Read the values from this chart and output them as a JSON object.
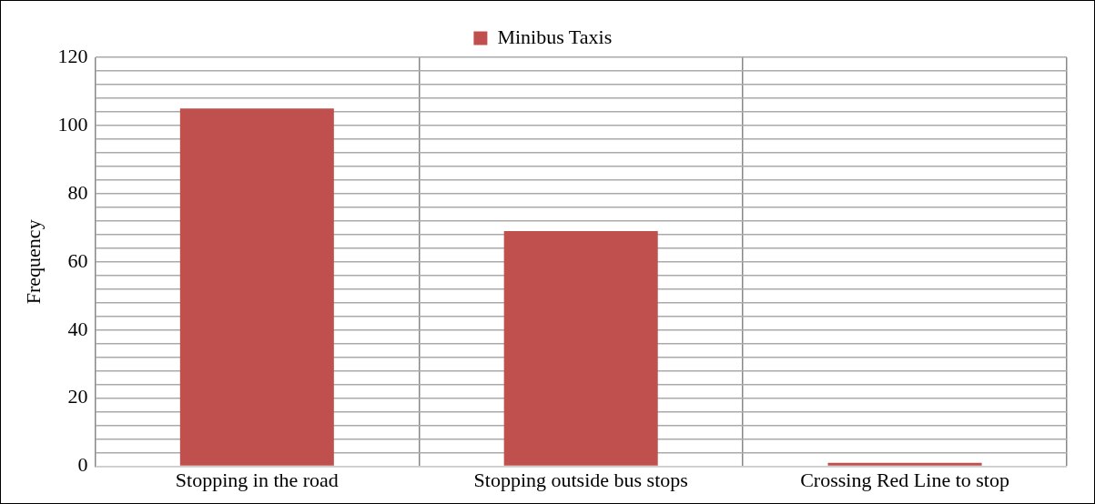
{
  "chart_data": {
    "type": "bar",
    "ylabel": "Frequency",
    "categories": [
      "Stopping in the road",
      "Stopping outside bus stops",
      "Crossing Red Line to stop"
    ],
    "series": [
      {
        "name": "Minibus Taxis",
        "color": "#c0504d",
        "values": [
          105,
          69,
          1
        ]
      }
    ],
    "ylim": [
      0,
      120
    ],
    "yticks": [
      0,
      {
        "value": 4,
        "label": null
      },
      {
        "value": 8,
        "label": null
      },
      {
        "value": 12,
        "label": null
      },
      {
        "value": 16,
        "label": null
      },
      20,
      {
        "value": 24,
        "label": null
      },
      {
        "value": 28,
        "label": null
      },
      {
        "value": 32,
        "label": null
      },
      {
        "value": 36,
        "label": null
      },
      40,
      {
        "value": 44,
        "label": null
      },
      {
        "value": 48,
        "label": null
      },
      {
        "value": 52,
        "label": null
      },
      {
        "value": 56,
        "label": null
      },
      60,
      {
        "value": 64,
        "label": null
      },
      {
        "value": 68,
        "label": null
      },
      {
        "value": 72,
        "label": null
      },
      {
        "value": 76,
        "label": null
      },
      80,
      {
        "value": 84,
        "label": null
      },
      {
        "value": 88,
        "label": null
      },
      {
        "value": 92,
        "label": null
      },
      {
        "value": 96,
        "label": null
      },
      100,
      {
        "value": 104,
        "label": null
      },
      {
        "value": 108,
        "label": null
      },
      {
        "value": 112,
        "label": null
      },
      {
        "value": 116,
        "label": null
      },
      120
    ],
    "grid": true,
    "legend": "top"
  }
}
